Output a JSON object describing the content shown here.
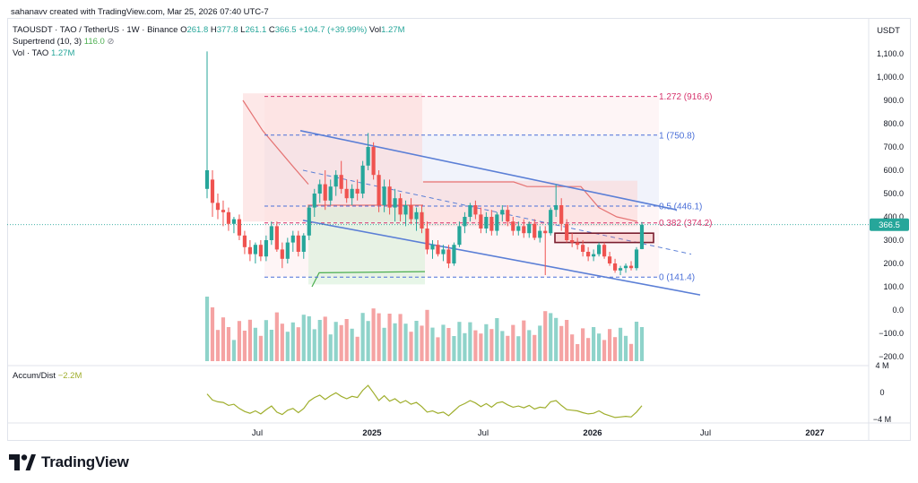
{
  "header": {
    "author_line": "sahanavv created with TradingView.com, Mar 25, 2026 07:40 UTC-7"
  },
  "legend": {
    "symbol_line": "TAOUSDT · TAO / TetherUS · 1W · Binance",
    "ohlc": [
      {
        "label": "O",
        "value": "261.8"
      },
      {
        "label": "H",
        "value": "377.8"
      },
      {
        "label": "L",
        "value": "261.1"
      },
      {
        "label": "C",
        "value": "366.5"
      }
    ],
    "change": "+104.7 (+39.99%)",
    "vol_label": "Vol",
    "vol_value": "1.27M",
    "supertrend_label": "Supertrend (10, 3)",
    "supertrend_value": "116.0",
    "vol_tao_label": "Vol · TAO",
    "vol_tao_value": "1.27M",
    "accum_label": "Accum/Dist",
    "accum_value": "−2.2M"
  },
  "brand": {
    "name": "TradingView"
  },
  "colors": {
    "up": "#26a69a",
    "down": "#ef5350",
    "up_vol": "#8fd3ca",
    "down_vol": "#f5a3a3",
    "channel": "#5b7fd6",
    "fib_red": "#d6336c",
    "fib_blue": "#4a6fd8",
    "supertrend_red": "#e57373",
    "supertrend_green": "#4caf50",
    "accum": "#9fae2c"
  },
  "chart_data": {
    "type": "candlestick",
    "title": "TAOUSDT · TAO / TetherUS · 1W · Binance",
    "currency_label": "USDT",
    "price_axis": {
      "ticks": [
        1100,
        1000,
        900,
        800,
        700,
        600,
        500,
        400,
        300,
        200,
        100,
        0,
        -100,
        -200
      ],
      "tick_labels": [
        "1,100.0",
        "1,000.0",
        "900.0",
        "800.0",
        "700.0",
        "600.0",
        "500.0",
        "400.0",
        "300.0",
        "200.0",
        "100.0",
        "0.0",
        "−100.0",
        "−200.0"
      ],
      "current_price": 366.5,
      "current_label": "366.5"
    },
    "time_axis": {
      "labels": [
        "Jul",
        "2025",
        "Jul",
        "2026",
        "Jul",
        "2027"
      ]
    },
    "fib_levels": [
      {
        "ratio": "1.272",
        "price": 916.6,
        "label": "1.272 (916.6)",
        "color": "#d6336c"
      },
      {
        "ratio": "1",
        "price": 750.8,
        "label": "1 (750.8)",
        "color": "#4a6fd8"
      },
      {
        "ratio": "0.5",
        "price": 446.1,
        "label": "0.5 (446.1)",
        "color": "#4a6fd8"
      },
      {
        "ratio": "0.382",
        "price": 374.2,
        "label": "0.382 (374.2)",
        "color": "#d6336c"
      },
      {
        "ratio": "0",
        "price": 141.4,
        "label": "0 (141.4)",
        "color": "#4a6fd8"
      }
    ],
    "candles": [
      {
        "o": 520,
        "h": 1110,
        "l": 480,
        "c": 600
      },
      {
        "o": 560,
        "h": 600,
        "l": 400,
        "c": 460
      },
      {
        "o": 460,
        "h": 500,
        "l": 390,
        "c": 430
      },
      {
        "o": 430,
        "h": 470,
        "l": 360,
        "c": 420
      },
      {
        "o": 420,
        "h": 440,
        "l": 340,
        "c": 370
      },
      {
        "o": 370,
        "h": 400,
        "l": 330,
        "c": 390
      },
      {
        "o": 390,
        "h": 410,
        "l": 300,
        "c": 320
      },
      {
        "o": 320,
        "h": 340,
        "l": 240,
        "c": 270
      },
      {
        "o": 270,
        "h": 300,
        "l": 210,
        "c": 240
      },
      {
        "o": 240,
        "h": 290,
        "l": 200,
        "c": 280
      },
      {
        "o": 280,
        "h": 300,
        "l": 210,
        "c": 230
      },
      {
        "o": 230,
        "h": 320,
        "l": 210,
        "c": 300
      },
      {
        "o": 300,
        "h": 380,
        "l": 280,
        "c": 360
      },
      {
        "o": 360,
        "h": 380,
        "l": 250,
        "c": 260
      },
      {
        "o": 260,
        "h": 290,
        "l": 180,
        "c": 220
      },
      {
        "o": 220,
        "h": 310,
        "l": 200,
        "c": 290
      },
      {
        "o": 290,
        "h": 340,
        "l": 250,
        "c": 320
      },
      {
        "o": 320,
        "h": 340,
        "l": 230,
        "c": 250
      },
      {
        "o": 250,
        "h": 330,
        "l": 220,
        "c": 320
      },
      {
        "o": 320,
        "h": 450,
        "l": 300,
        "c": 440
      },
      {
        "o": 440,
        "h": 520,
        "l": 400,
        "c": 500
      },
      {
        "o": 500,
        "h": 560,
        "l": 460,
        "c": 540
      },
      {
        "o": 540,
        "h": 600,
        "l": 430,
        "c": 470
      },
      {
        "o": 470,
        "h": 560,
        "l": 450,
        "c": 530
      },
      {
        "o": 530,
        "h": 600,
        "l": 490,
        "c": 580
      },
      {
        "o": 580,
        "h": 640,
        "l": 500,
        "c": 520
      },
      {
        "o": 520,
        "h": 560,
        "l": 460,
        "c": 480
      },
      {
        "o": 480,
        "h": 540,
        "l": 450,
        "c": 520
      },
      {
        "o": 520,
        "h": 560,
        "l": 470,
        "c": 500
      },
      {
        "o": 500,
        "h": 640,
        "l": 480,
        "c": 620
      },
      {
        "o": 620,
        "h": 760,
        "l": 600,
        "c": 700
      },
      {
        "o": 700,
        "h": 720,
        "l": 560,
        "c": 580
      },
      {
        "o": 580,
        "h": 600,
        "l": 420,
        "c": 450
      },
      {
        "o": 450,
        "h": 560,
        "l": 420,
        "c": 530
      },
      {
        "o": 530,
        "h": 560,
        "l": 410,
        "c": 440
      },
      {
        "o": 440,
        "h": 520,
        "l": 380,
        "c": 480
      },
      {
        "o": 480,
        "h": 500,
        "l": 380,
        "c": 410
      },
      {
        "o": 410,
        "h": 470,
        "l": 360,
        "c": 450
      },
      {
        "o": 450,
        "h": 480,
        "l": 370,
        "c": 390
      },
      {
        "o": 390,
        "h": 440,
        "l": 340,
        "c": 420
      },
      {
        "o": 420,
        "h": 450,
        "l": 330,
        "c": 350
      },
      {
        "o": 350,
        "h": 380,
        "l": 240,
        "c": 260
      },
      {
        "o": 260,
        "h": 300,
        "l": 220,
        "c": 280
      },
      {
        "o": 280,
        "h": 300,
        "l": 230,
        "c": 240
      },
      {
        "o": 240,
        "h": 280,
        "l": 210,
        "c": 260
      },
      {
        "o": 260,
        "h": 280,
        "l": 180,
        "c": 200
      },
      {
        "o": 200,
        "h": 290,
        "l": 190,
        "c": 280
      },
      {
        "o": 280,
        "h": 380,
        "l": 270,
        "c": 360
      },
      {
        "o": 360,
        "h": 420,
        "l": 330,
        "c": 400
      },
      {
        "o": 400,
        "h": 460,
        "l": 380,
        "c": 450
      },
      {
        "o": 450,
        "h": 470,
        "l": 390,
        "c": 410
      },
      {
        "o": 410,
        "h": 440,
        "l": 330,
        "c": 350
      },
      {
        "o": 350,
        "h": 420,
        "l": 330,
        "c": 400
      },
      {
        "o": 400,
        "h": 430,
        "l": 320,
        "c": 340
      },
      {
        "o": 340,
        "h": 420,
        "l": 320,
        "c": 410
      },
      {
        "o": 410,
        "h": 450,
        "l": 380,
        "c": 430
      },
      {
        "o": 430,
        "h": 450,
        "l": 360,
        "c": 380
      },
      {
        "o": 380,
        "h": 400,
        "l": 320,
        "c": 340
      },
      {
        "o": 340,
        "h": 380,
        "l": 320,
        "c": 360
      },
      {
        "o": 360,
        "h": 390,
        "l": 310,
        "c": 330
      },
      {
        "o": 330,
        "h": 380,
        "l": 310,
        "c": 370
      },
      {
        "o": 370,
        "h": 390,
        "l": 300,
        "c": 310
      },
      {
        "o": 310,
        "h": 360,
        "l": 290,
        "c": 340
      },
      {
        "o": 340,
        "h": 360,
        "l": 150,
        "c": 330
      },
      {
        "o": 330,
        "h": 440,
        "l": 320,
        "c": 430
      },
      {
        "o": 430,
        "h": 540,
        "l": 400,
        "c": 450
      },
      {
        "o": 450,
        "h": 480,
        "l": 340,
        "c": 370
      },
      {
        "o": 370,
        "h": 390,
        "l": 290,
        "c": 300
      },
      {
        "o": 300,
        "h": 330,
        "l": 270,
        "c": 290
      },
      {
        "o": 290,
        "h": 310,
        "l": 260,
        "c": 280
      },
      {
        "o": 280,
        "h": 300,
        "l": 230,
        "c": 250
      },
      {
        "o": 250,
        "h": 270,
        "l": 210,
        "c": 230
      },
      {
        "o": 230,
        "h": 260,
        "l": 210,
        "c": 240
      },
      {
        "o": 240,
        "h": 290,
        "l": 230,
        "c": 280
      },
      {
        "o": 280,
        "h": 290,
        "l": 220,
        "c": 230
      },
      {
        "o": 230,
        "h": 250,
        "l": 190,
        "c": 200
      },
      {
        "o": 200,
        "h": 220,
        "l": 160,
        "c": 170
      },
      {
        "o": 170,
        "h": 190,
        "l": 150,
        "c": 180
      },
      {
        "o": 180,
        "h": 200,
        "l": 160,
        "c": 190
      },
      {
        "o": 190,
        "h": 210,
        "l": 170,
        "c": 180
      },
      {
        "o": 180,
        "h": 270,
        "l": 170,
        "c": 260
      },
      {
        "o": 261.8,
        "h": 377.8,
        "l": 261.1,
        "c": 366.5
      }
    ],
    "volume_pane": {
      "note_values_relative": true
    },
    "accum_axis": {
      "tick_labels": [
        "4 M",
        "0",
        "−4 M"
      ]
    },
    "supertrend": {
      "last_value": 116.0
    },
    "grid": false,
    "legend_position": "top-left"
  }
}
